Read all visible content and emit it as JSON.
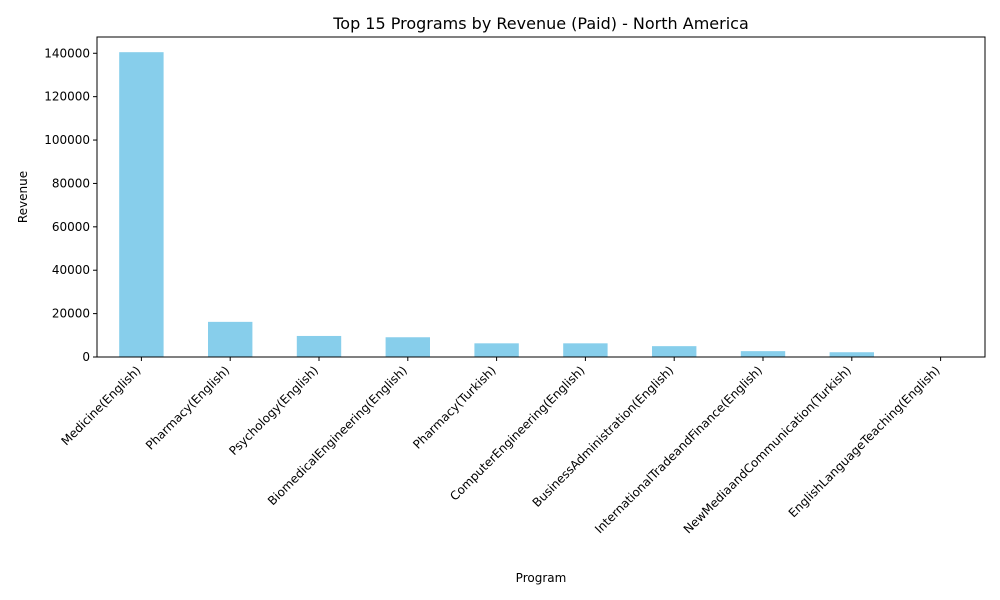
{
  "chart_data": {
    "type": "bar",
    "title": "Top 15 Programs by Revenue (Paid) - North America",
    "xlabel": "Program",
    "ylabel": "Revenue",
    "categories": [
      "Medicine(English)",
      "Pharmacy(English)",
      "Psychology(English)",
      "BiomedicalEngineering(English)",
      "Pharmacy(Turkish)",
      "ComputerEngineering(English)",
      "BusinessAdministration(English)",
      "InternationalTradeandFinance(English)",
      "NewMediaandCommunication(Turkish)",
      "EnglishLanguageTeaching(English)"
    ],
    "values": [
      140500,
      16200,
      9700,
      9100,
      6300,
      6300,
      5000,
      2700,
      2200,
      0
    ],
    "ylim": [
      0,
      147500
    ],
    "yticks": [
      0,
      20000,
      40000,
      60000,
      80000,
      100000,
      120000,
      140000
    ],
    "bar_color": "#87CEEB",
    "grid": false,
    "legend": "none"
  }
}
